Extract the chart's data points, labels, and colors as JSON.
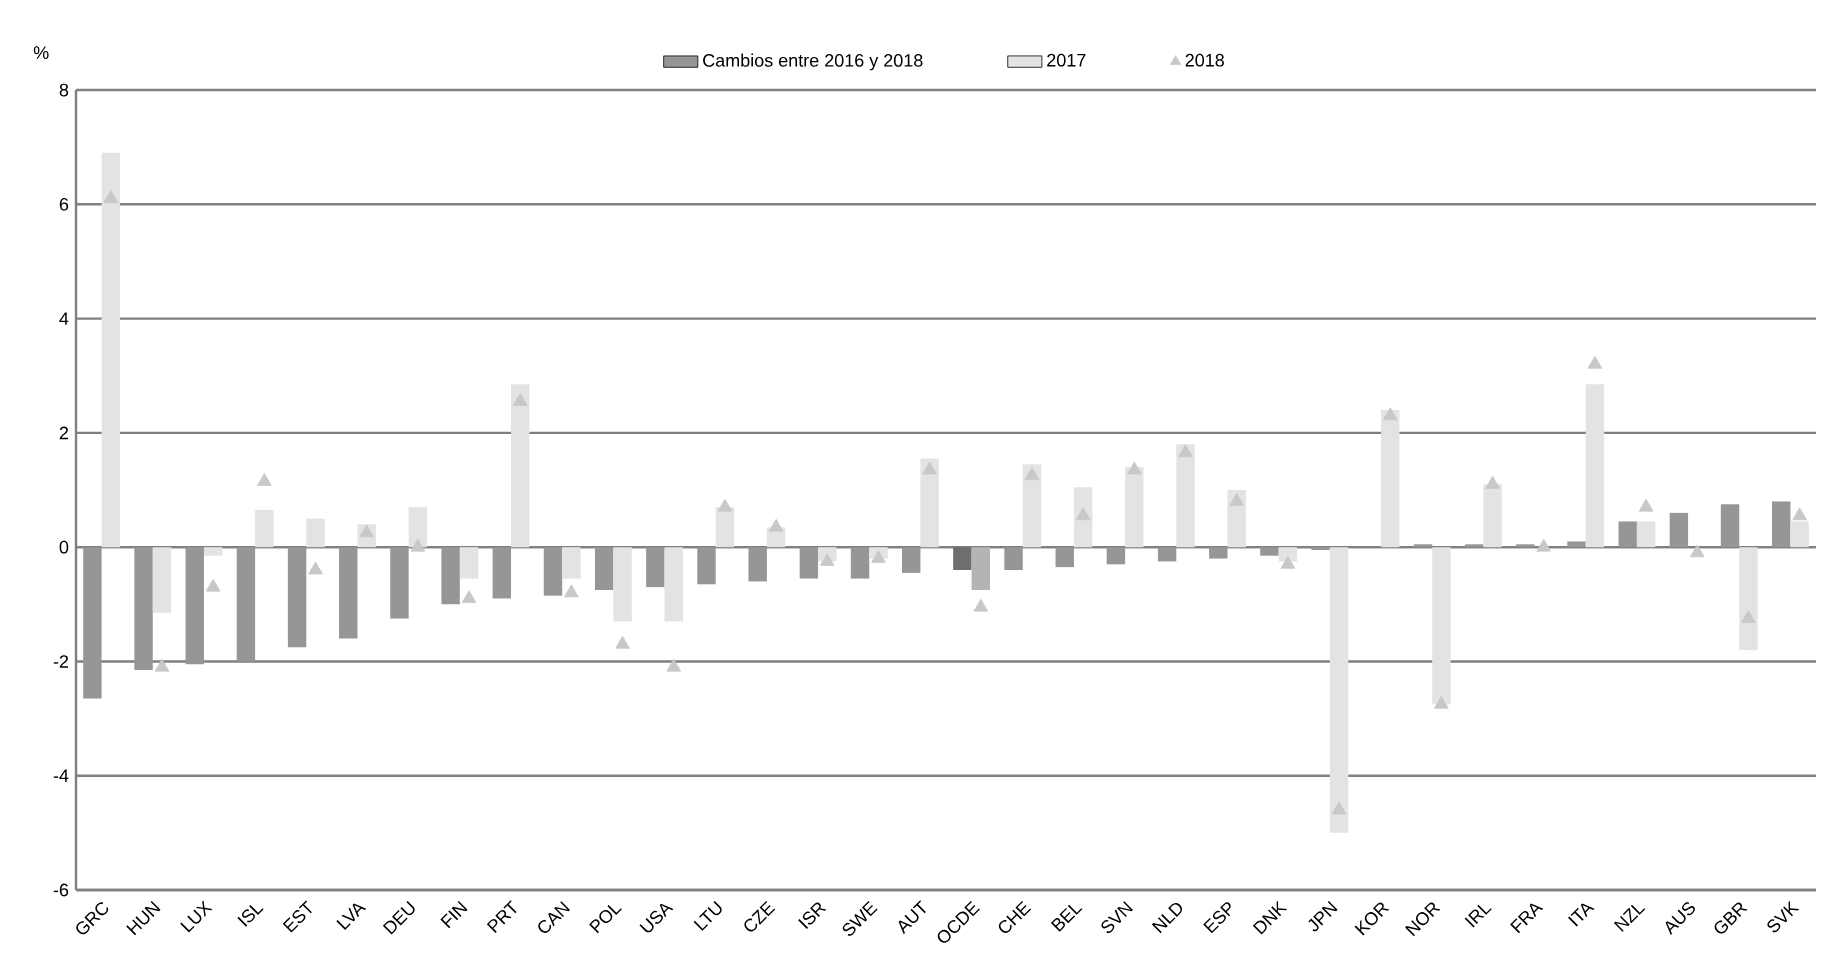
{
  "chart_data": {
    "type": "bar",
    "ylabel": "%",
    "categories": [
      "GRC",
      "HUN",
      "LUX",
      "ISL",
      "EST",
      "LVA",
      "DEU",
      "FIN",
      "PRT",
      "CAN",
      "POL",
      "USA",
      "LTU",
      "CZE",
      "ISR",
      "SWE",
      "AUT",
      "OCDE",
      "CHE",
      "BEL",
      "SVN",
      "NLD",
      "ESP",
      "DNK",
      "JPN",
      "KOR",
      "NOR",
      "IRL",
      "FRA",
      "ITA",
      "NZL",
      "AUS",
      "GBR",
      "SVK"
    ],
    "series": [
      {
        "name": "Cambios entre 2016 y 2018",
        "color": "#969696",
        "colors": [
          "#969696",
          "#969696",
          "#969696",
          "#969696",
          "#969696",
          "#969696",
          "#969696",
          "#969696",
          "#969696",
          "#969696",
          "#969696",
          "#969696",
          "#969696",
          "#969696",
          "#969696",
          "#969696",
          "#969696",
          "#6e6e6e",
          "#969696",
          "#969696",
          "#969696",
          "#969696",
          "#969696",
          "#969696",
          "#969696",
          "#969696",
          "#969696",
          "#969696",
          "#969696",
          "#969696",
          "#969696",
          "#969696",
          "#969696",
          "#969696"
        ],
        "values": [
          -2.65,
          -2.15,
          -2.05,
          -2.0,
          -1.75,
          -1.6,
          -1.25,
          -1.0,
          -0.9,
          -0.85,
          -0.75,
          -0.7,
          -0.65,
          -0.6,
          -0.55,
          -0.55,
          -0.45,
          -0.4,
          -0.4,
          -0.35,
          -0.3,
          -0.25,
          -0.2,
          -0.15,
          -0.05,
          0.0,
          0.05,
          0.05,
          0.05,
          0.1,
          0.45,
          0.6,
          0.75,
          0.8
        ]
      },
      {
        "name": "2017",
        "color": "#e3e3e3",
        "colors": [
          "#e3e3e3",
          "#e3e3e3",
          "#e3e3e3",
          "#e3e3e3",
          "#e3e3e3",
          "#e3e3e3",
          "#e3e3e3",
          "#e3e3e3",
          "#e3e3e3",
          "#e3e3e3",
          "#e3e3e3",
          "#e3e3e3",
          "#e3e3e3",
          "#e3e3e3",
          "#e3e3e3",
          "#e3e3e3",
          "#e3e3e3",
          "#b4b4b4",
          "#e3e3e3",
          "#e3e3e3",
          "#e3e3e3",
          "#e3e3e3",
          "#e3e3e3",
          "#e3e3e3",
          "#e3e3e3",
          "#e3e3e3",
          "#e3e3e3",
          "#e3e3e3",
          "#e3e3e3",
          "#e3e3e3",
          "#e3e3e3",
          "#e3e3e3",
          "#e3e3e3",
          "#e3e3e3"
        ],
        "values": [
          6.9,
          -1.15,
          -0.15,
          0.65,
          0.5,
          0.4,
          0.7,
          -0.55,
          2.85,
          -0.55,
          -1.3,
          -1.3,
          0.7,
          0.35,
          -0.25,
          -0.2,
          1.55,
          -0.75,
          1.45,
          1.05,
          1.4,
          1.8,
          1.0,
          -0.25,
          -5.0,
          2.4,
          -2.75,
          1.1,
          null,
          2.85,
          0.45,
          null,
          -1.8,
          0.45
        ]
      },
      {
        "name": "2018",
        "type": "scatter",
        "marker": "triangle",
        "color": "#c8c8c8",
        "values": [
          6.1,
          -2.1,
          -0.7,
          1.15,
          -0.4,
          0.25,
          0.0,
          -0.9,
          2.55,
          -0.8,
          -1.7,
          -2.1,
          0.7,
          0.35,
          -0.25,
          -0.2,
          1.35,
          -1.05,
          1.25,
          0.55,
          1.35,
          1.65,
          0.8,
          -0.3,
          -4.6,
          2.3,
          -2.75,
          1.1,
          0.0,
          3.2,
          0.7,
          -0.1,
          -1.25,
          0.55
        ]
      }
    ],
    "ylim": [
      -6,
      8
    ],
    "yticks": [
      -6,
      -4,
      -2,
      0,
      2,
      4,
      6,
      8
    ],
    "grid": "y",
    "legend": "top"
  }
}
